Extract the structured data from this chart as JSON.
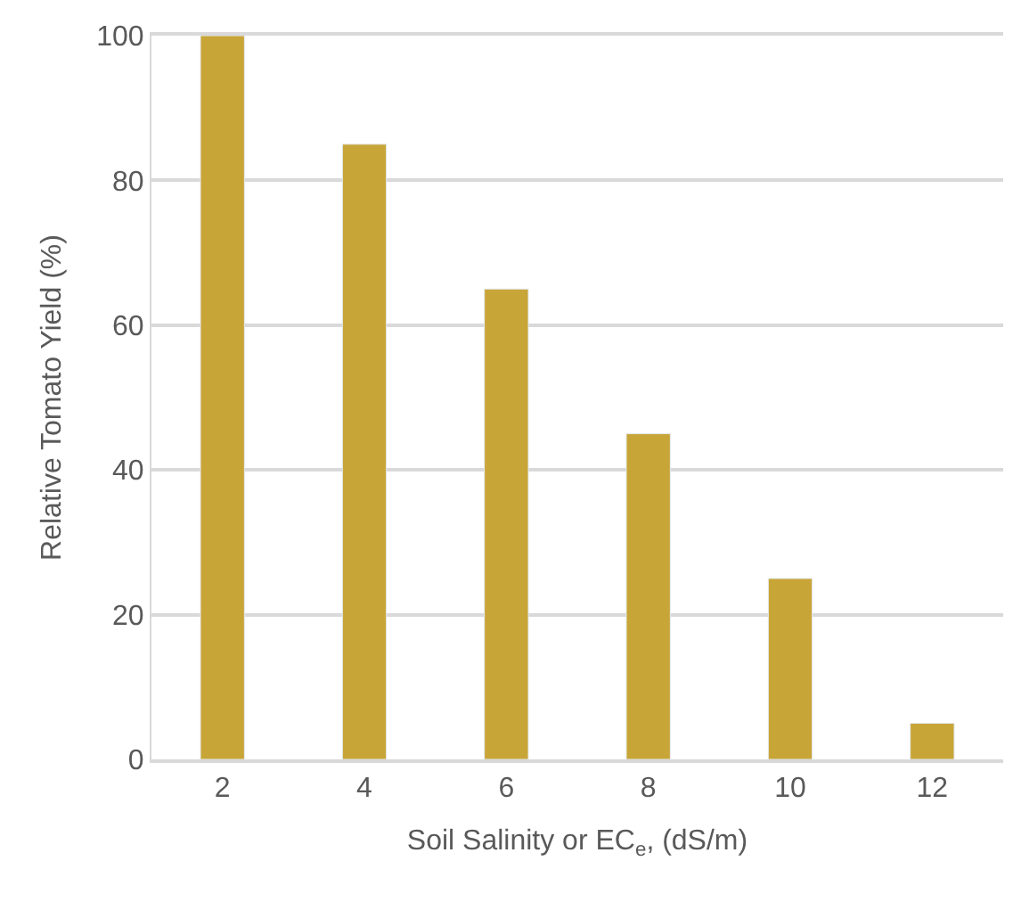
{
  "chart_data": {
    "type": "bar",
    "categories": [
      "2",
      "4",
      "6",
      "8",
      "10",
      "12"
    ],
    "values": [
      100,
      85,
      65,
      45,
      25,
      5
    ],
    "color": "#c8a537",
    "xlabel": "Soil Salinity or EC$_{e}$, (dS/m)",
    "ylabel": "Relative Tomato Yield (%)",
    "ylim": [
      0,
      100
    ],
    "yticks": [
      0,
      20,
      40,
      60,
      80,
      100
    ],
    "grid": "y"
  }
}
